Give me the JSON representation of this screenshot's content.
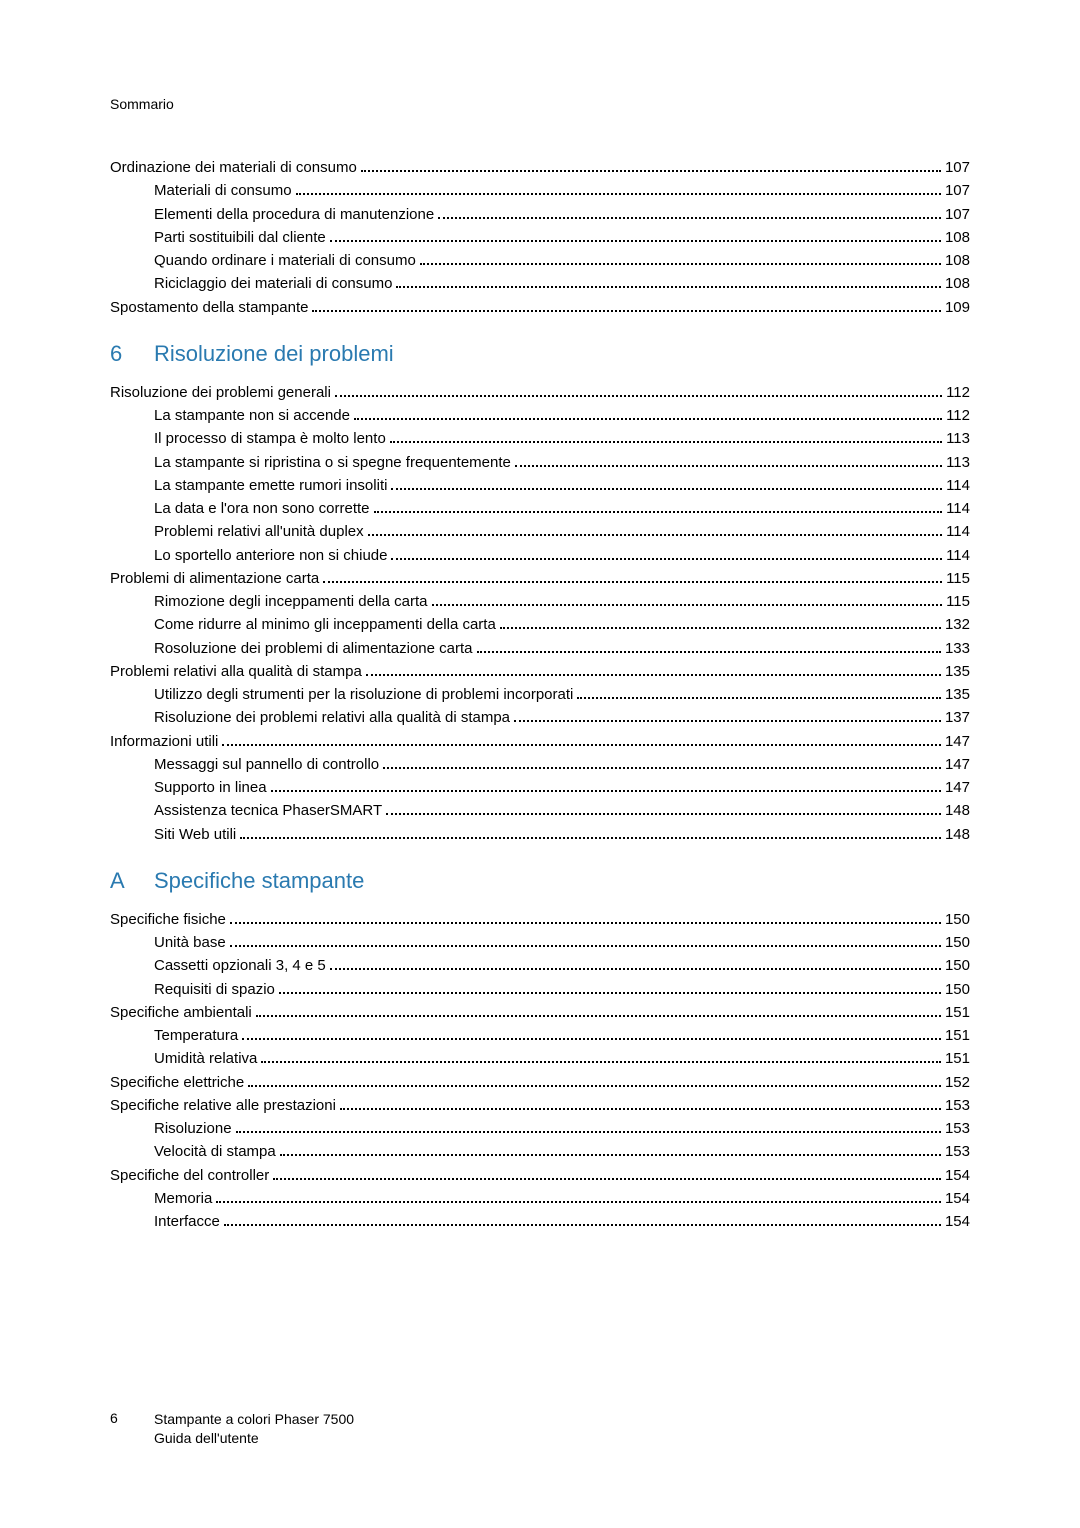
{
  "colors": {
    "accent": "#2a7ab0",
    "text": "#000000",
    "background": "#ffffff",
    "dots": "#000000"
  },
  "typography": {
    "body_fontsize_pt": 11,
    "heading_fontsize_pt": 16,
    "font_family": "Segoe UI / Helvetica Neue / Arial"
  },
  "running_head": "Sommario",
  "footer": {
    "page_number": "6",
    "line1": "Stampante a colori Phaser 7500",
    "line2": "Guida dell'utente"
  },
  "entries": [
    {
      "kind": "item",
      "indent": 0,
      "label": "Ordinazione dei materiali di consumo",
      "page": "107"
    },
    {
      "kind": "item",
      "indent": 1,
      "label": "Materiali di consumo",
      "page": "107"
    },
    {
      "kind": "item",
      "indent": 1,
      "label": "Elementi della procedura di manutenzione",
      "page": "107"
    },
    {
      "kind": "item",
      "indent": 1,
      "label": "Parti sostituibili dal cliente",
      "page": "108"
    },
    {
      "kind": "item",
      "indent": 1,
      "label": "Quando ordinare i materiali di consumo",
      "page": "108"
    },
    {
      "kind": "item",
      "indent": 1,
      "label": "Riciclaggio dei materiali di consumo",
      "page": "108"
    },
    {
      "kind": "item",
      "indent": 0,
      "label": "Spostamento della stampante",
      "page": "109"
    },
    {
      "kind": "heading",
      "num": "6",
      "title": "Risoluzione dei problemi"
    },
    {
      "kind": "item",
      "indent": 0,
      "label": "Risoluzione dei problemi generali",
      "page": "112"
    },
    {
      "kind": "item",
      "indent": 1,
      "label": "La stampante non si accende",
      "page": "112"
    },
    {
      "kind": "item",
      "indent": 1,
      "label": "Il processo di stampa è molto lento",
      "page": "113"
    },
    {
      "kind": "item",
      "indent": 1,
      "label": "La stampante si ripristina o si spegne frequentemente",
      "page": "113"
    },
    {
      "kind": "item",
      "indent": 1,
      "label": "La stampante emette rumori insoliti",
      "page": "114"
    },
    {
      "kind": "item",
      "indent": 1,
      "label": "La data e l'ora non sono corrette",
      "page": "114"
    },
    {
      "kind": "item",
      "indent": 1,
      "label": "Problemi relativi all'unità duplex",
      "page": "114"
    },
    {
      "kind": "item",
      "indent": 1,
      "label": "Lo sportello anteriore non si chiude",
      "page": "114"
    },
    {
      "kind": "item",
      "indent": 0,
      "label": "Problemi di alimentazione carta",
      "page": "115"
    },
    {
      "kind": "item",
      "indent": 1,
      "label": "Rimozione degli inceppamenti della carta",
      "page": "115"
    },
    {
      "kind": "item",
      "indent": 1,
      "label": "Come ridurre al minimo gli inceppamenti della carta",
      "page": "132"
    },
    {
      "kind": "item",
      "indent": 1,
      "label": "Rosoluzione dei problemi di alimentazione carta",
      "page": "133"
    },
    {
      "kind": "item",
      "indent": 0,
      "label": "Problemi relativi alla qualità di stampa",
      "page": "135"
    },
    {
      "kind": "item",
      "indent": 1,
      "label": "Utilizzo degli strumenti per la risoluzione di problemi incorporati",
      "page": "135"
    },
    {
      "kind": "item",
      "indent": 1,
      "label": "Risoluzione dei problemi relativi alla qualità di stampa",
      "page": "137"
    },
    {
      "kind": "item",
      "indent": 0,
      "label": "Informazioni utili",
      "page": "147"
    },
    {
      "kind": "item",
      "indent": 1,
      "label": "Messaggi sul pannello di controllo",
      "page": "147"
    },
    {
      "kind": "item",
      "indent": 1,
      "label": "Supporto in linea",
      "page": "147"
    },
    {
      "kind": "item",
      "indent": 1,
      "label": "Assistenza tecnica PhaserSMART",
      "page": "148"
    },
    {
      "kind": "item",
      "indent": 1,
      "label": "Siti Web utili",
      "page": "148"
    },
    {
      "kind": "heading",
      "num": "A",
      "title": "Specifiche stampante"
    },
    {
      "kind": "item",
      "indent": 0,
      "label": "Specifiche fisiche",
      "page": "150"
    },
    {
      "kind": "item",
      "indent": 1,
      "label": "Unità base",
      "page": "150"
    },
    {
      "kind": "item",
      "indent": 1,
      "label": "Cassetti opzionali 3, 4 e 5",
      "page": "150"
    },
    {
      "kind": "item",
      "indent": 1,
      "label": "Requisiti di spazio",
      "page": "150"
    },
    {
      "kind": "item",
      "indent": 0,
      "label": "Specifiche ambientali",
      "page": "151"
    },
    {
      "kind": "item",
      "indent": 1,
      "label": "Temperatura",
      "page": "151"
    },
    {
      "kind": "item",
      "indent": 1,
      "label": "Umidità relativa",
      "page": "151"
    },
    {
      "kind": "item",
      "indent": 0,
      "label": "Specifiche elettriche",
      "page": "152"
    },
    {
      "kind": "item",
      "indent": 0,
      "label": "Specifiche relative alle prestazioni",
      "page": "153"
    },
    {
      "kind": "item",
      "indent": 1,
      "label": "Risoluzione",
      "page": "153"
    },
    {
      "kind": "item",
      "indent": 1,
      "label": "Velocità di stampa",
      "page": "153"
    },
    {
      "kind": "item",
      "indent": 0,
      "label": "Specifiche del controller",
      "page": "154"
    },
    {
      "kind": "item",
      "indent": 1,
      "label": "Memoria",
      "page": "154"
    },
    {
      "kind": "item",
      "indent": 1,
      "label": "Interfacce",
      "page": "154"
    }
  ]
}
